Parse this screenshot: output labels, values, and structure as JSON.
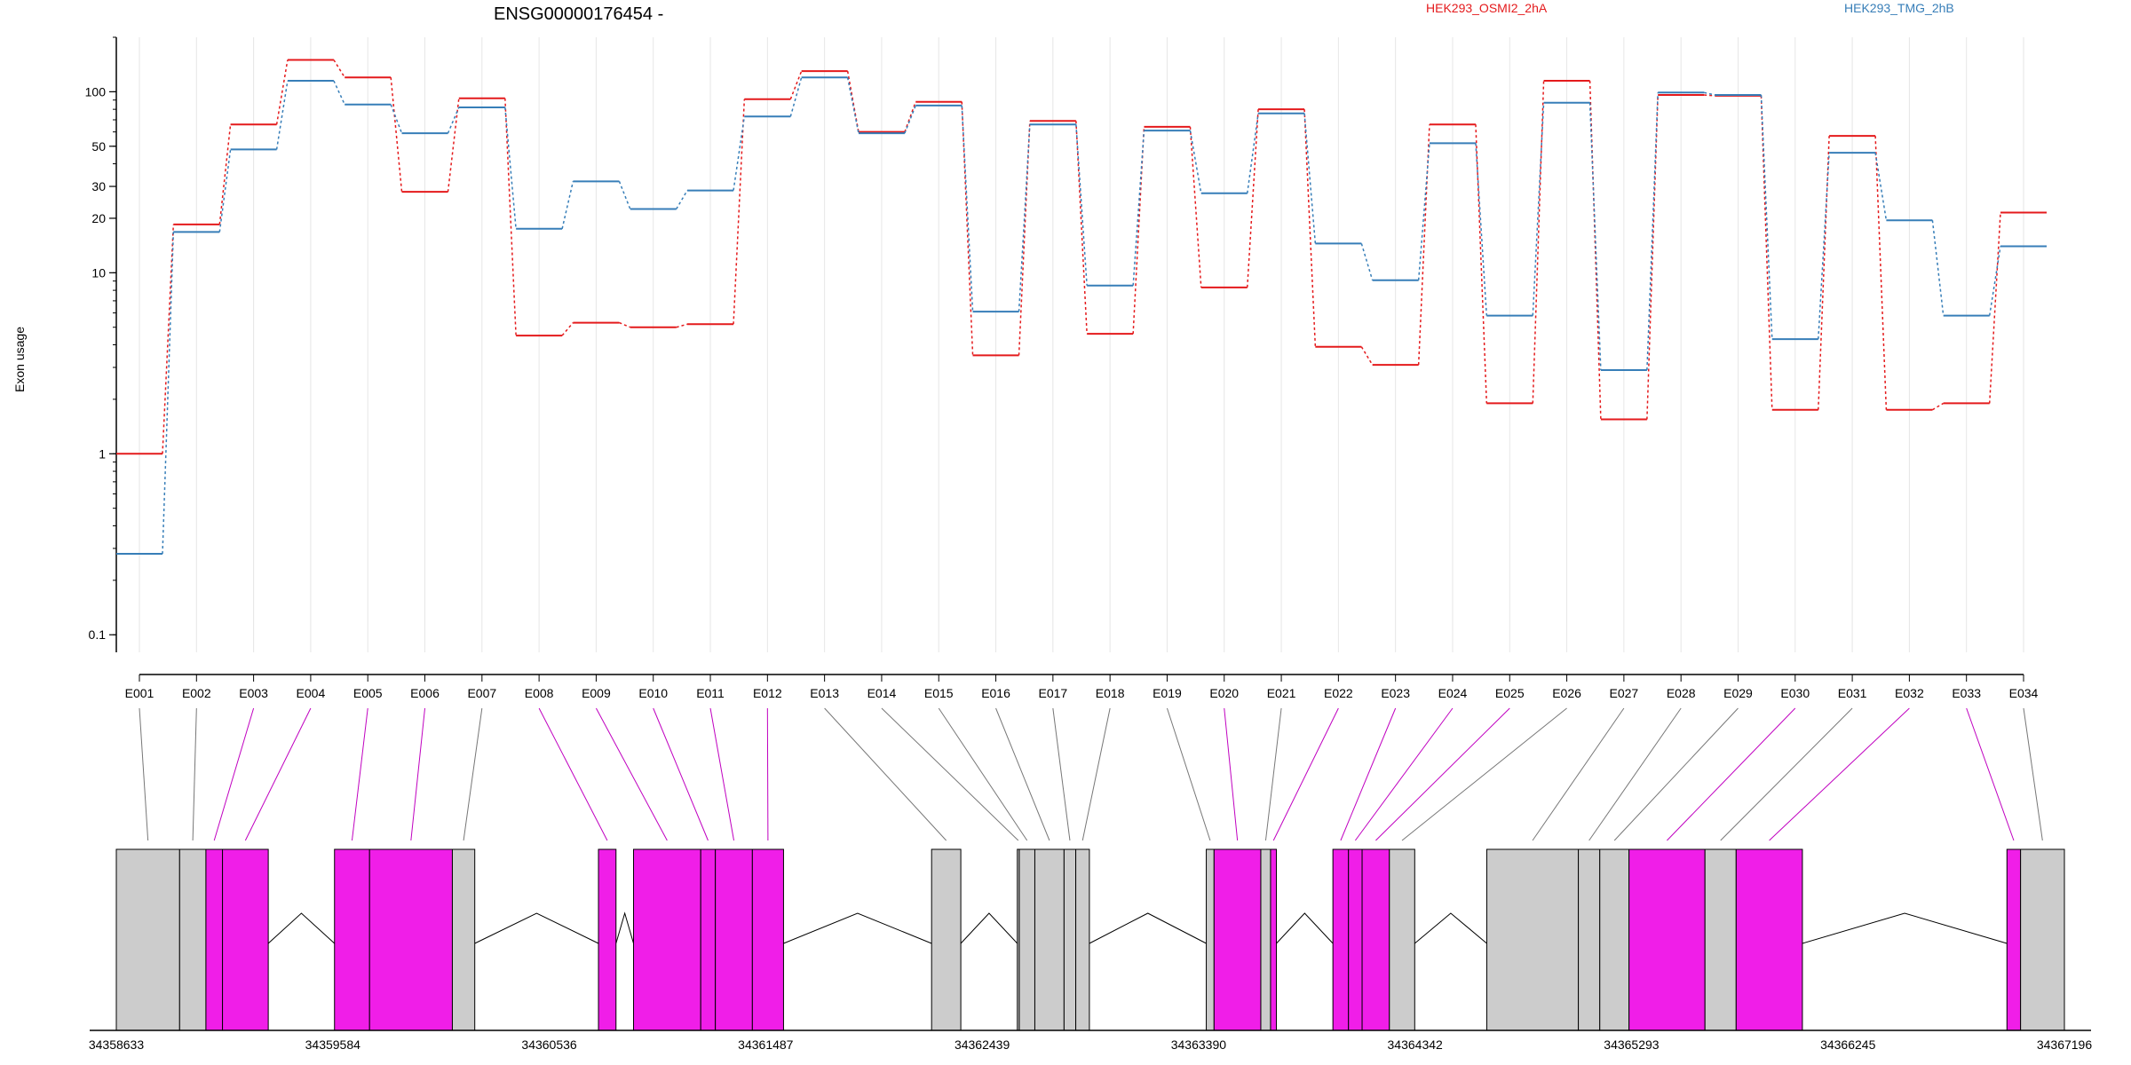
{
  "chart_data": {
    "type": "line",
    "title": "ENSG00000176454 -",
    "ylabel": "Exon usage",
    "yscale": "log",
    "ylim": [
      0.08,
      200
    ],
    "y_ticks": [
      {
        "v": 0.1,
        "label": "0.1"
      },
      {
        "v": 1,
        "label": "1"
      },
      {
        "v": 10,
        "label": "10"
      },
      {
        "v": 20,
        "label": "20"
      },
      {
        "v": 30,
        "label": "30"
      },
      {
        "v": 50,
        "label": "50"
      },
      {
        "v": 100,
        "label": "100"
      }
    ],
    "grid": "vertical",
    "legend_position": "top",
    "categories": [
      "E001",
      "E002",
      "E003",
      "E004",
      "E005",
      "E006",
      "E007",
      "E008",
      "E009",
      "E010",
      "E011",
      "E012",
      "E013",
      "E014",
      "E015",
      "E016",
      "E017",
      "E018",
      "E019",
      "E020",
      "E021",
      "E022",
      "E023",
      "E024",
      "E025",
      "E026",
      "E027",
      "E028",
      "E029",
      "E030",
      "E031",
      "E032",
      "E033",
      "E034"
    ],
    "series": [
      {
        "name": "HEK293_OSMI2_2hA",
        "color": "#e41a1c",
        "values": [
          1.0,
          18.5,
          66,
          150,
          120,
          28,
          92,
          4.5,
          5.3,
          5.0,
          5.2,
          91,
          130,
          60,
          88,
          3.5,
          69,
          4.6,
          64,
          8.3,
          80,
          3.9,
          3.1,
          66,
          1.9,
          115,
          1.55,
          96,
          95,
          1.75,
          57,
          1.75,
          1.9,
          21.5
        ]
      },
      {
        "name": "HEK293_TMG_2hB",
        "color": "#377eb8",
        "values": [
          0.28,
          16.8,
          48,
          115,
          85,
          59,
          82,
          17.5,
          32,
          22.5,
          28.5,
          73,
          120,
          59,
          84,
          6.1,
          66,
          8.5,
          61,
          27.5,
          76,
          14.5,
          9.1,
          52,
          5.8,
          87,
          2.9,
          99,
          96,
          4.3,
          46,
          19.5,
          5.8,
          14
        ]
      }
    ],
    "gene_model": {
      "coordinates": [
        "34358633",
        "34359584",
        "34360536",
        "34361487",
        "34362439",
        "34363390",
        "34364342",
        "34365293",
        "34366245",
        "34367196"
      ],
      "colors": {
        "tested": "#f01ee8",
        "untested": "#cccccc"
      },
      "exons": [
        {
          "id": "E001",
          "start": 0.0,
          "end": 0.0325,
          "diff": false
        },
        {
          "id": "E002",
          "start": 0.0325,
          "end": 0.046,
          "diff": false
        },
        {
          "id": "E003",
          "start": 0.046,
          "end": 0.0545,
          "diff": true
        },
        {
          "id": "E004",
          "start": 0.0545,
          "end": 0.078,
          "diff": true
        },
        {
          "id": "E005",
          "start": 0.112,
          "end": 0.13,
          "diff": true
        },
        {
          "id": "E006",
          "start": 0.13,
          "end": 0.1725,
          "diff": true
        },
        {
          "id": "E007",
          "start": 0.1725,
          "end": 0.184,
          "diff": false
        },
        {
          "id": "E008",
          "start": 0.2475,
          "end": 0.2565,
          "diff": true
        },
        {
          "id": "E009",
          "start": 0.2655,
          "end": 0.3,
          "diff": true
        },
        {
          "id": "E010",
          "start": 0.3,
          "end": 0.3075,
          "diff": true
        },
        {
          "id": "E011",
          "start": 0.3075,
          "end": 0.3265,
          "diff": true
        },
        {
          "id": "E012",
          "start": 0.3265,
          "end": 0.3425,
          "diff": true
        },
        {
          "id": "E013",
          "start": 0.4185,
          "end": 0.4335,
          "diff": false
        },
        {
          "id": "E014",
          "start": 0.4625,
          "end": 0.4635,
          "diff": false
        },
        {
          "id": "E015",
          "start": 0.4635,
          "end": 0.4715,
          "diff": false
        },
        {
          "id": "E016",
          "start": 0.4715,
          "end": 0.4865,
          "diff": false
        },
        {
          "id": "E017",
          "start": 0.4865,
          "end": 0.4925,
          "diff": false
        },
        {
          "id": "E018",
          "start": 0.4925,
          "end": 0.4995,
          "diff": false
        },
        {
          "id": "E019",
          "start": 0.5595,
          "end": 0.5635,
          "diff": false
        },
        {
          "id": "E020",
          "start": 0.5635,
          "end": 0.5875,
          "diff": true
        },
        {
          "id": "E021",
          "start": 0.5875,
          "end": 0.5925,
          "diff": false
        },
        {
          "id": "E022",
          "start": 0.5925,
          "end": 0.5955,
          "diff": true
        },
        {
          "id": "E023",
          "start": 0.6245,
          "end": 0.6325,
          "diff": true
        },
        {
          "id": "E024",
          "start": 0.6325,
          "end": 0.6395,
          "diff": true
        },
        {
          "id": "E025",
          "start": 0.6395,
          "end": 0.6535,
          "diff": true
        },
        {
          "id": "E026",
          "start": 0.6535,
          "end": 0.6665,
          "diff": false
        },
        {
          "id": "E027",
          "start": 0.7035,
          "end": 0.7505,
          "diff": false
        },
        {
          "id": "E028",
          "start": 0.7505,
          "end": 0.7615,
          "diff": false
        },
        {
          "id": "E029",
          "start": 0.7615,
          "end": 0.7765,
          "diff": false
        },
        {
          "id": "E030",
          "start": 0.7765,
          "end": 0.8155,
          "diff": true
        },
        {
          "id": "E031",
          "start": 0.8155,
          "end": 0.8315,
          "diff": false
        },
        {
          "id": "E032",
          "start": 0.8315,
          "end": 0.8655,
          "diff": true
        },
        {
          "id": "E033",
          "start": 0.9705,
          "end": 0.9775,
          "diff": true
        },
        {
          "id": "E034",
          "start": 0.9775,
          "end": 1.0,
          "diff": false
        }
      ],
      "introns": [
        [
          0.078,
          0.112
        ],
        [
          0.184,
          0.2475
        ],
        [
          0.2565,
          0.2655
        ],
        [
          0.3425,
          0.4185
        ],
        [
          0.4335,
          0.4625
        ],
        [
          0.4995,
          0.5595
        ],
        [
          0.5955,
          0.6245
        ],
        [
          0.6665,
          0.7035
        ],
        [
          0.8655,
          0.9705
        ]
      ]
    }
  }
}
